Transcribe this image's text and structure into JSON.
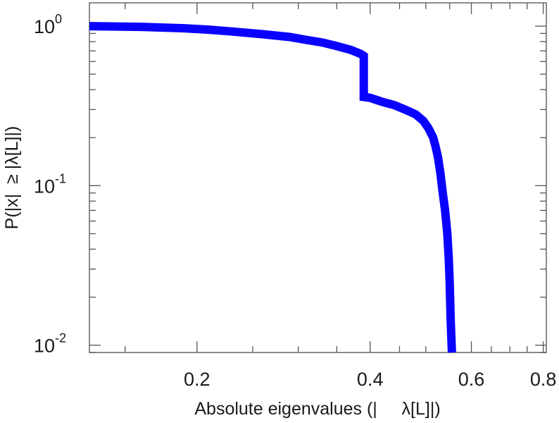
{
  "chart_data": {
    "type": "line",
    "title": "",
    "xlabel": "Absolute eigenvalues (|     λ[L]|)",
    "ylabel": "P(|x|  ≥ |λ[L]|)",
    "x_scale": "log",
    "y_scale": "log",
    "xlim": [
      0.13,
      0.81
    ],
    "ylim": [
      0.009,
      1.4
    ],
    "x_ticks": [
      {
        "value": 0.2,
        "label": "0.2"
      },
      {
        "value": 0.4,
        "label": "0.4"
      },
      {
        "value": 0.6,
        "label": "0.6"
      },
      {
        "value": 0.8,
        "label": "0.8"
      }
    ],
    "y_ticks": [
      {
        "value": 1,
        "base": "10",
        "exp": "0"
      },
      {
        "value": 0.1,
        "base": "10",
        "exp": "-1"
      },
      {
        "value": 0.01,
        "base": "10",
        "exp": "-2"
      }
    ],
    "grid": false,
    "series": [
      {
        "color": "#0a00ff",
        "x": [
          0.13,
          0.16,
          0.19,
          0.21,
          0.23,
          0.26,
          0.29,
          0.31,
          0.33,
          0.35,
          0.37,
          0.385,
          0.39,
          0.39,
          0.4,
          0.42,
          0.44,
          0.46,
          0.48,
          0.495,
          0.505,
          0.515,
          0.52,
          0.525,
          0.53,
          0.535,
          0.54,
          0.545,
          0.548,
          0.55,
          0.552,
          0.555
        ],
        "y": [
          1.0,
          0.99,
          0.97,
          0.95,
          0.925,
          0.89,
          0.855,
          0.82,
          0.79,
          0.75,
          0.71,
          0.67,
          0.65,
          0.36,
          0.355,
          0.335,
          0.32,
          0.3,
          0.28,
          0.255,
          0.23,
          0.2,
          0.175,
          0.15,
          0.12,
          0.09,
          0.07,
          0.05,
          0.035,
          0.025,
          0.015,
          0.009
        ]
      }
    ]
  }
}
